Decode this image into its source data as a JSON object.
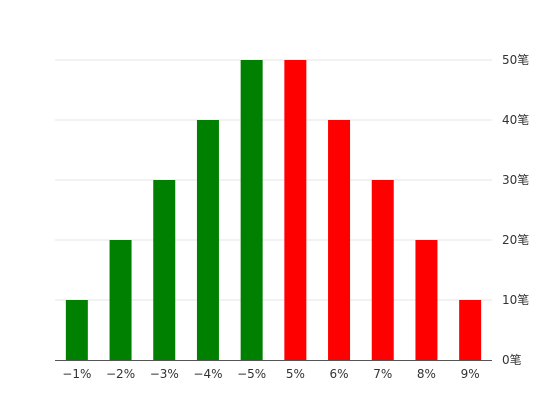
{
  "chart_data": {
    "type": "bar",
    "categories": [
      "−1%",
      "−2%",
      "−3%",
      "−4%",
      "−5%",
      "5%",
      "6%",
      "7%",
      "8%",
      "9%"
    ],
    "values": [
      10,
      20,
      30,
      40,
      50,
      50,
      40,
      30,
      20,
      10
    ],
    "ylim": [
      0,
      50
    ],
    "y_ticks": [
      0,
      10,
      20,
      30,
      40,
      50
    ],
    "y_tick_labels": [
      "0笔",
      "10笔",
      "20笔",
      "30笔",
      "40笔",
      "50笔"
    ],
    "y_axis_side": "right",
    "grid": true,
    "bar_colors": [
      "#008000",
      "#008000",
      "#008000",
      "#008000",
      "#008000",
      "#ff0000",
      "#ff0000",
      "#ff0000",
      "#ff0000",
      "#ff0000"
    ]
  }
}
